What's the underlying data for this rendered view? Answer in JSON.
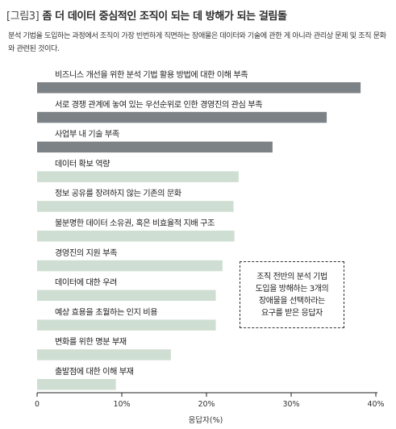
{
  "figure": {
    "title_prefix": "[그림3]",
    "title_main": "좀 더 데이터 중심적인 조직이 되는 데 방해가 되는 걸림돌",
    "description": "분석 기법을 도입하는 과정에서 조직이 가장 빈번하게 직면하는 장애물은 데이터와 기술에 관한 게 아니라 관리상 문제 및 조직 문화와 관련된 것이다.",
    "note": "조직 전반의 분석 기법\n도입을 방해하는 3개의\n장애물을 선택하라는\n요구를 받은 응답자"
  },
  "chart_data": {
    "type": "bar",
    "orientation": "horizontal",
    "categories": [
      "비즈니스 개선을 위한 분석 기법 활용 방법에 대한 이해 부족",
      "서로 경쟁 관계에 놓여 있는 우선순위로 인한 경영진의 관심 부족",
      "사업부 내 기술 부족",
      "데이터 확보 역량",
      "정보 공유를 장려하지 않는 기존의 문화",
      "불분명한 데이터 소유권, 혹은 비효율적 지배 구조",
      "경영진의 지원 부족",
      "데이터에 대한 우려",
      "예상 효용을 초월하는 인지 비용",
      "변화를 위한 명분 부재",
      "출발점에 대한 이해 부재"
    ],
    "values": [
      38.2,
      34.2,
      27.8,
      23.8,
      23.2,
      23.3,
      21.9,
      21.1,
      21.1,
      15.8,
      9.3
    ],
    "highlight_count": 3,
    "colors": {
      "highlight": "#7c8285",
      "normal": "#cfded2",
      "axis": "#222222"
    },
    "x_axis": {
      "label": "응답자(%)",
      "ticks": [
        0,
        10,
        20,
        30,
        40
      ],
      "tick_labels": [
        "0",
        "10%",
        "20%",
        "30%",
        "40%"
      ],
      "range": [
        0,
        40
      ]
    },
    "grid": false
  }
}
